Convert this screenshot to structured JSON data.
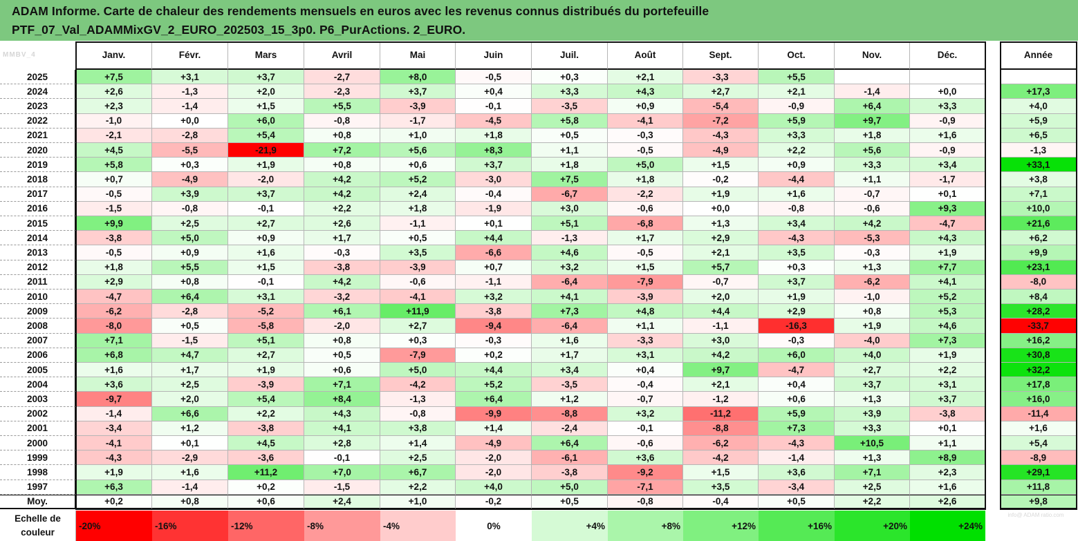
{
  "title": {
    "line1": "ADAM Informe. Carte de chaleur des rendements mensuels en euros avec les revenus connus distribués du portefeuille",
    "line2": "PTF_07_Val_ADAMMixGV_2_EURO_202503_15_3p0. P6_PurActions. 2_EURO."
  },
  "watermark": {
    "top": "MMBV_4",
    "bottom": "info@ ADAM ratio.com"
  },
  "colors": {
    "title_bar": "#7dc87f",
    "negative_max": "#ff0000",
    "neutral": "#ffffff",
    "positive_max": "#00e000"
  },
  "chart_data": {
    "type": "heatmap",
    "columns": [
      "Janv.",
      "Févr.",
      "Mars",
      "Avril",
      "Mai",
      "Juin",
      "Juil.",
      "Août",
      "Sept.",
      "Oct.",
      "Nov.",
      "Déc."
    ],
    "annual_label": "Année",
    "rows": [
      {
        "year": "2025",
        "values": [
          "+7,5",
          "+3,1",
          "+3,7",
          "-2,7",
          "+8,0",
          "-0,5",
          "+0,3",
          "+2,1",
          "-3,3",
          "+5,5",
          "",
          ""
        ],
        "annual": ""
      },
      {
        "year": "2024",
        "values": [
          "+2,6",
          "-1,3",
          "+2,0",
          "-2,3",
          "+3,7",
          "+0,4",
          "+3,3",
          "+4,3",
          "+2,7",
          "+2,1",
          "-1,4",
          "+0,0"
        ],
        "annual": "+17,3"
      },
      {
        "year": "2023",
        "values": [
          "+2,3",
          "-1,4",
          "+1,5",
          "+5,5",
          "-3,9",
          "-0,1",
          "-3,5",
          "+0,9",
          "-5,4",
          "-0,9",
          "+6,4",
          "+3,3"
        ],
        "annual": "+4,0"
      },
      {
        "year": "2022",
        "values": [
          "-1,0",
          "+0,0",
          "+6,0",
          "-0,8",
          "-1,7",
          "-4,5",
          "+5,8",
          "-4,1",
          "-7,2",
          "+5,9",
          "+9,7",
          "-0,9"
        ],
        "annual": "+5,9"
      },
      {
        "year": "2021",
        "values": [
          "-2,1",
          "-2,8",
          "+5,4",
          "+0,8",
          "+1,0",
          "+1,8",
          "+0,5",
          "-0,3",
          "-4,3",
          "+3,3",
          "+1,8",
          "+1,6"
        ],
        "annual": "+6,5"
      },
      {
        "year": "2020",
        "values": [
          "+4,5",
          "-5,5",
          "-21,9",
          "+7,2",
          "+5,6",
          "+8,3",
          "+1,1",
          "-0,5",
          "-4,9",
          "+2,2",
          "+5,6",
          "-0,9"
        ],
        "annual": "-1,3"
      },
      {
        "year": "2019",
        "values": [
          "+5,8",
          "+0,3",
          "+1,9",
          "+0,8",
          "+0,6",
          "+3,7",
          "+1,8",
          "+5,0",
          "+1,5",
          "+0,9",
          "+3,3",
          "+3,4"
        ],
        "annual": "+33,1"
      },
      {
        "year": "2018",
        "values": [
          "+0,7",
          "-4,9",
          "-2,0",
          "+4,2",
          "+5,2",
          "-3,0",
          "+7,5",
          "+1,8",
          "-0,2",
          "-4,4",
          "+1,1",
          "-1,7"
        ],
        "annual": "+3,8"
      },
      {
        "year": "2017",
        "values": [
          "-0,5",
          "+3,9",
          "+3,7",
          "+4,2",
          "+2,4",
          "-0,4",
          "-6,7",
          "-2,2",
          "+1,9",
          "+1,6",
          "-0,7",
          "+0,1"
        ],
        "annual": "+7,1"
      },
      {
        "year": "2016",
        "values": [
          "-1,5",
          "-0,8",
          "-0,1",
          "+2,2",
          "+1,8",
          "-1,9",
          "+3,0",
          "-0,6",
          "+0,0",
          "-0,8",
          "-0,6",
          "+9,3"
        ],
        "annual": "+10,0"
      },
      {
        "year": "2015",
        "values": [
          "+9,9",
          "+2,5",
          "+2,7",
          "+2,6",
          "-1,1",
          "+0,1",
          "+5,1",
          "-6,8",
          "+1,3",
          "+3,4",
          "+4,2",
          "-4,7"
        ],
        "annual": "+21,6"
      },
      {
        "year": "2014",
        "values": [
          "-3,8",
          "+5,0",
          "+0,9",
          "+1,7",
          "+0,5",
          "+4,4",
          "-1,3",
          "+1,7",
          "+2,9",
          "-4,3",
          "-5,3",
          "+4,3"
        ],
        "annual": "+6,2"
      },
      {
        "year": "2013",
        "values": [
          "-0,5",
          "+0,9",
          "+1,6",
          "-0,3",
          "+3,5",
          "-6,6",
          "+4,6",
          "-0,5",
          "+2,1",
          "+3,5",
          "-0,3",
          "+1,9"
        ],
        "annual": "+9,9"
      },
      {
        "year": "2012",
        "values": [
          "+1,8",
          "+5,5",
          "+1,5",
          "-3,8",
          "-3,9",
          "+0,7",
          "+3,2",
          "+1,5",
          "+5,7",
          "+0,3",
          "+1,3",
          "+7,7"
        ],
        "annual": "+23,1"
      },
      {
        "year": "2011",
        "values": [
          "+2,9",
          "+0,8",
          "-0,1",
          "+4,2",
          "-0,6",
          "-1,1",
          "-6,4",
          "-7,9",
          "-0,7",
          "+3,7",
          "-6,2",
          "+4,1"
        ],
        "annual": "-8,0"
      },
      {
        "year": "2010",
        "values": [
          "-4,7",
          "+6,4",
          "+3,1",
          "-3,2",
          "-4,1",
          "+3,2",
          "+4,1",
          "-3,9",
          "+2,0",
          "+1,9",
          "-1,0",
          "+5,2"
        ],
        "annual": "+8,4"
      },
      {
        "year": "2009",
        "values": [
          "-6,2",
          "-2,8",
          "-5,2",
          "+6,1",
          "+11,9",
          "-3,8",
          "+7,3",
          "+4,8",
          "+4,4",
          "+2,9",
          "+0,8",
          "+5,3"
        ],
        "annual": "+28,2"
      },
      {
        "year": "2008",
        "values": [
          "-8,0",
          "+0,5",
          "-5,8",
          "-2,0",
          "+2,7",
          "-9,4",
          "-6,4",
          "+1,1",
          "-1,1",
          "-16,3",
          "+1,9",
          "+4,6"
        ],
        "annual": "-33,7"
      },
      {
        "year": "2007",
        "values": [
          "+7,1",
          "-1,5",
          "+5,1",
          "+0,8",
          "+0,3",
          "-0,3",
          "+1,6",
          "-3,3",
          "+3,0",
          "-0,3",
          "-4,0",
          "+7,3"
        ],
        "annual": "+16,2"
      },
      {
        "year": "2006",
        "values": [
          "+6,8",
          "+4,7",
          "+2,7",
          "+0,5",
          "-7,9",
          "+0,2",
          "+1,7",
          "+3,1",
          "+4,2",
          "+6,0",
          "+4,0",
          "+1,9"
        ],
        "annual": "+30,8"
      },
      {
        "year": "2005",
        "values": [
          "+1,6",
          "+1,7",
          "+1,9",
          "+0,6",
          "+5,0",
          "+4,4",
          "+3,4",
          "+0,4",
          "+9,7",
          "-4,7",
          "+2,7",
          "+2,2"
        ],
        "annual": "+32,2"
      },
      {
        "year": "2004",
        "values": [
          "+3,6",
          "+2,5",
          "-3,9",
          "+7,1",
          "-4,2",
          "+5,2",
          "-3,5",
          "-0,4",
          "+2,1",
          "+0,4",
          "+3,7",
          "+3,1"
        ],
        "annual": "+17,8"
      },
      {
        "year": "2003",
        "values": [
          "-9,7",
          "+2,0",
          "+5,4",
          "+8,4",
          "-1,3",
          "+6,4",
          "+1,2",
          "-0,7",
          "-1,2",
          "+0,6",
          "+1,3",
          "+3,7"
        ],
        "annual": "+16,0"
      },
      {
        "year": "2002",
        "values": [
          "-1,4",
          "+6,6",
          "+2,2",
          "+4,3",
          "-0,8",
          "-9,9",
          "-8,8",
          "+3,2",
          "-11,2",
          "+5,9",
          "+3,9",
          "-3,8"
        ],
        "annual": "-11,4"
      },
      {
        "year": "2001",
        "values": [
          "-3,4",
          "+1,2",
          "-3,8",
          "+4,1",
          "+3,8",
          "+1,4",
          "-2,4",
          "-0,1",
          "-8,8",
          "+7,3",
          "+3,3",
          "+0,1"
        ],
        "annual": "+1,6"
      },
      {
        "year": "2000",
        "values": [
          "-4,1",
          "+0,1",
          "+4,5",
          "+2,8",
          "+1,4",
          "-4,9",
          "+6,4",
          "-0,6",
          "-6,2",
          "-4,3",
          "+10,5",
          "+1,1"
        ],
        "annual": "+5,4"
      },
      {
        "year": "1999",
        "values": [
          "-4,3",
          "-2,9",
          "-3,6",
          "-0,1",
          "+2,5",
          "-2,0",
          "-6,1",
          "+3,6",
          "-4,2",
          "-1,4",
          "+1,3",
          "+8,9"
        ],
        "annual": "-8,9"
      },
      {
        "year": "1998",
        "values": [
          "+1,9",
          "+1,6",
          "+11,2",
          "+7,0",
          "+6,7",
          "-2,0",
          "-3,8",
          "-9,2",
          "+1,5",
          "+3,6",
          "+7,1",
          "+2,3"
        ],
        "annual": "+29,1"
      },
      {
        "year": "1997",
        "values": [
          "+6,3",
          "-1,4",
          "+0,2",
          "-1,5",
          "+2,2",
          "+4,0",
          "+5,0",
          "-7,1",
          "+3,5",
          "-3,4",
          "+2,5",
          "+1,6"
        ],
        "annual": "+11,8"
      }
    ],
    "average": {
      "label": "Moy.",
      "values": [
        "+0,2",
        "+0,8",
        "+0,6",
        "+2,4",
        "+1,0",
        "-0,2",
        "+0,5",
        "-0,8",
        "-0,4",
        "+0,5",
        "+2,2",
        "+2,6"
      ],
      "annual": "+9,8"
    },
    "scale": {
      "label_line1": "Echelle de",
      "label_line2": "couleur",
      "steps": [
        "-20%",
        "-16%",
        "-12%",
        "-8%",
        "-4%",
        "0%",
        "+4%",
        "+8%",
        "+12%",
        "+16%",
        "+20%",
        "+24%"
      ]
    }
  }
}
